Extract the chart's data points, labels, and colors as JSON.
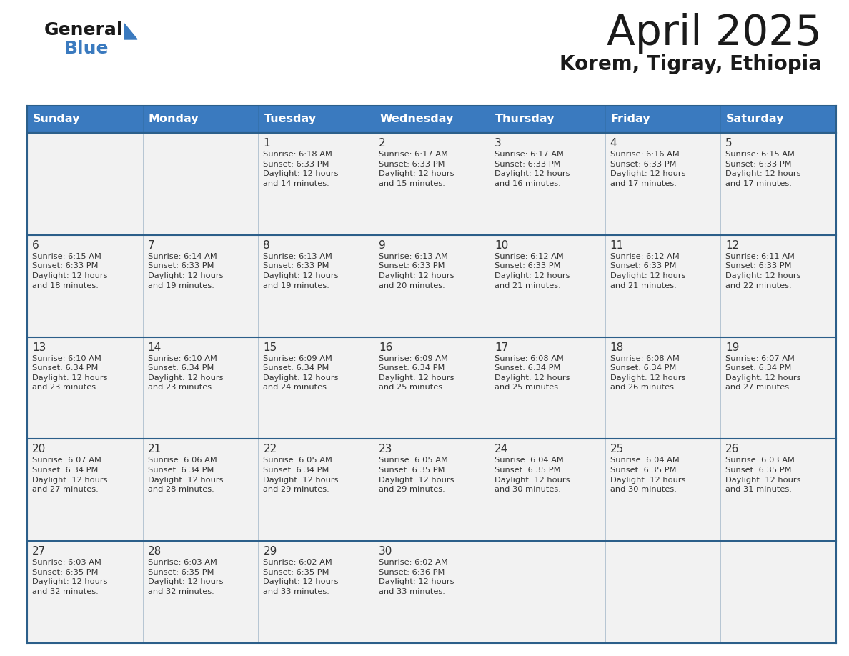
{
  "title": "April 2025",
  "subtitle": "Korem, Tigray, Ethiopia",
  "days_of_week": [
    "Sunday",
    "Monday",
    "Tuesday",
    "Wednesday",
    "Thursday",
    "Friday",
    "Saturday"
  ],
  "header_bg": "#3a7abf",
  "header_text": "#ffffff",
  "cell_bg": "#f2f2f2",
  "border_color": "#2c5f8a",
  "text_color": "#333333",
  "logo_general_color": "#1a1a1a",
  "logo_blue_color": "#3a7abf",
  "logo_triangle_color": "#3a7abf",
  "title_color": "#1a1a1a",
  "subtitle_color": "#1a1a1a",
  "weeks": [
    [
      {
        "day": null,
        "info": null
      },
      {
        "day": null,
        "info": null
      },
      {
        "day": 1,
        "info": "Sunrise: 6:18 AM\nSunset: 6:33 PM\nDaylight: 12 hours\nand 14 minutes."
      },
      {
        "day": 2,
        "info": "Sunrise: 6:17 AM\nSunset: 6:33 PM\nDaylight: 12 hours\nand 15 minutes."
      },
      {
        "day": 3,
        "info": "Sunrise: 6:17 AM\nSunset: 6:33 PM\nDaylight: 12 hours\nand 16 minutes."
      },
      {
        "day": 4,
        "info": "Sunrise: 6:16 AM\nSunset: 6:33 PM\nDaylight: 12 hours\nand 17 minutes."
      },
      {
        "day": 5,
        "info": "Sunrise: 6:15 AM\nSunset: 6:33 PM\nDaylight: 12 hours\nand 17 minutes."
      }
    ],
    [
      {
        "day": 6,
        "info": "Sunrise: 6:15 AM\nSunset: 6:33 PM\nDaylight: 12 hours\nand 18 minutes."
      },
      {
        "day": 7,
        "info": "Sunrise: 6:14 AM\nSunset: 6:33 PM\nDaylight: 12 hours\nand 19 minutes."
      },
      {
        "day": 8,
        "info": "Sunrise: 6:13 AM\nSunset: 6:33 PM\nDaylight: 12 hours\nand 19 minutes."
      },
      {
        "day": 9,
        "info": "Sunrise: 6:13 AM\nSunset: 6:33 PM\nDaylight: 12 hours\nand 20 minutes."
      },
      {
        "day": 10,
        "info": "Sunrise: 6:12 AM\nSunset: 6:33 PM\nDaylight: 12 hours\nand 21 minutes."
      },
      {
        "day": 11,
        "info": "Sunrise: 6:12 AM\nSunset: 6:33 PM\nDaylight: 12 hours\nand 21 minutes."
      },
      {
        "day": 12,
        "info": "Sunrise: 6:11 AM\nSunset: 6:33 PM\nDaylight: 12 hours\nand 22 minutes."
      }
    ],
    [
      {
        "day": 13,
        "info": "Sunrise: 6:10 AM\nSunset: 6:34 PM\nDaylight: 12 hours\nand 23 minutes."
      },
      {
        "day": 14,
        "info": "Sunrise: 6:10 AM\nSunset: 6:34 PM\nDaylight: 12 hours\nand 23 minutes."
      },
      {
        "day": 15,
        "info": "Sunrise: 6:09 AM\nSunset: 6:34 PM\nDaylight: 12 hours\nand 24 minutes."
      },
      {
        "day": 16,
        "info": "Sunrise: 6:09 AM\nSunset: 6:34 PM\nDaylight: 12 hours\nand 25 minutes."
      },
      {
        "day": 17,
        "info": "Sunrise: 6:08 AM\nSunset: 6:34 PM\nDaylight: 12 hours\nand 25 minutes."
      },
      {
        "day": 18,
        "info": "Sunrise: 6:08 AM\nSunset: 6:34 PM\nDaylight: 12 hours\nand 26 minutes."
      },
      {
        "day": 19,
        "info": "Sunrise: 6:07 AM\nSunset: 6:34 PM\nDaylight: 12 hours\nand 27 minutes."
      }
    ],
    [
      {
        "day": 20,
        "info": "Sunrise: 6:07 AM\nSunset: 6:34 PM\nDaylight: 12 hours\nand 27 minutes."
      },
      {
        "day": 21,
        "info": "Sunrise: 6:06 AM\nSunset: 6:34 PM\nDaylight: 12 hours\nand 28 minutes."
      },
      {
        "day": 22,
        "info": "Sunrise: 6:05 AM\nSunset: 6:34 PM\nDaylight: 12 hours\nand 29 minutes."
      },
      {
        "day": 23,
        "info": "Sunrise: 6:05 AM\nSunset: 6:35 PM\nDaylight: 12 hours\nand 29 minutes."
      },
      {
        "day": 24,
        "info": "Sunrise: 6:04 AM\nSunset: 6:35 PM\nDaylight: 12 hours\nand 30 minutes."
      },
      {
        "day": 25,
        "info": "Sunrise: 6:04 AM\nSunset: 6:35 PM\nDaylight: 12 hours\nand 30 minutes."
      },
      {
        "day": 26,
        "info": "Sunrise: 6:03 AM\nSunset: 6:35 PM\nDaylight: 12 hours\nand 31 minutes."
      }
    ],
    [
      {
        "day": 27,
        "info": "Sunrise: 6:03 AM\nSunset: 6:35 PM\nDaylight: 12 hours\nand 32 minutes."
      },
      {
        "day": 28,
        "info": "Sunrise: 6:03 AM\nSunset: 6:35 PM\nDaylight: 12 hours\nand 32 minutes."
      },
      {
        "day": 29,
        "info": "Sunrise: 6:02 AM\nSunset: 6:35 PM\nDaylight: 12 hours\nand 33 minutes."
      },
      {
        "day": 30,
        "info": "Sunrise: 6:02 AM\nSunset: 6:36 PM\nDaylight: 12 hours\nand 33 minutes."
      },
      {
        "day": null,
        "info": null
      },
      {
        "day": null,
        "info": null
      },
      {
        "day": null,
        "info": null
      }
    ]
  ]
}
